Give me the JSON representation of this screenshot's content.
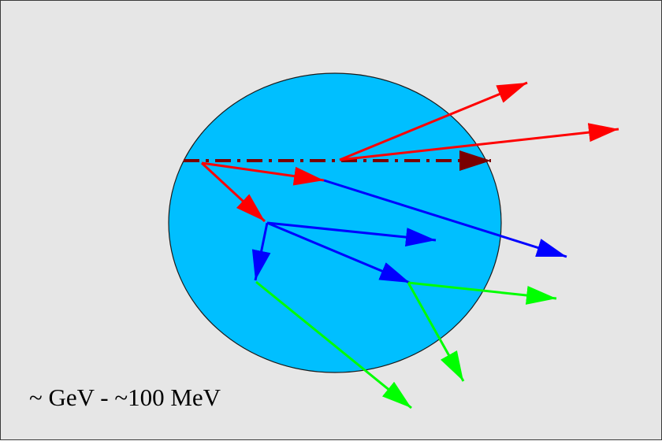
{
  "energy_scale_label": "~ GeV - ~100 MeV",
  "colors": {
    "background": "#e6e6e6",
    "nucleus_fill": "#00bfff",
    "incident_particle": "#7a0000",
    "first_generation": "#ff0000",
    "second_generation": "#0000ff",
    "third_generation": "#00ff00"
  },
  "icons": {
    "nucleus": "circle",
    "particle_track": "arrow"
  }
}
